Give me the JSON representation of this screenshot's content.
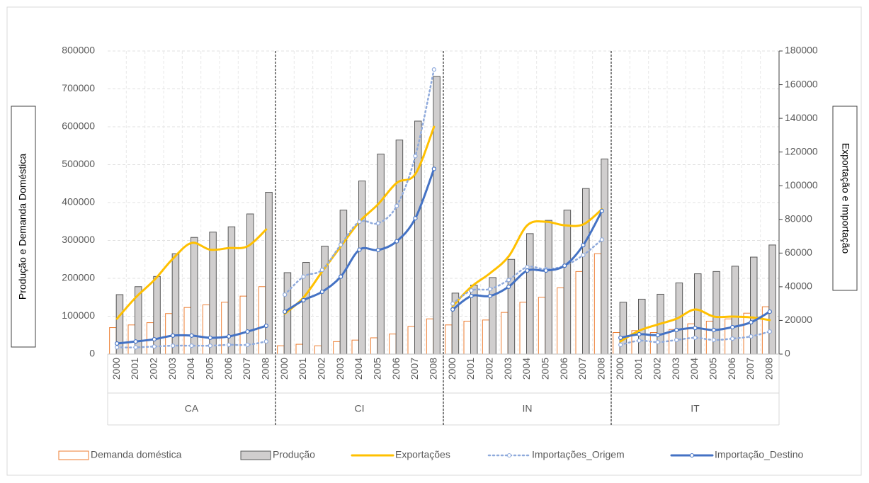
{
  "chart_data": {
    "type": "combo",
    "y_label": "Produção e Demanda Doméstica",
    "y2_label": "Exportação e Importação",
    "groups": [
      "CA",
      "CI",
      "IN",
      "IT"
    ],
    "categories": [
      "2000",
      "2001",
      "2002",
      "2003",
      "2004",
      "2005",
      "2006",
      "2007",
      "2008",
      "2000",
      "2001",
      "2002",
      "2003",
      "2004",
      "2005",
      "2006",
      "2007",
      "2008",
      "2000",
      "2001",
      "2002",
      "2003",
      "2004",
      "2005",
      "2006",
      "2007",
      "2008",
      "2000",
      "2001",
      "2002",
      "2003",
      "2004",
      "2005",
      "2006",
      "2007",
      "2008"
    ],
    "ylim": [
      0,
      800000
    ],
    "yticks": [
      0,
      100000,
      200000,
      300000,
      400000,
      500000,
      600000,
      700000,
      800000
    ],
    "y2lim": [
      0,
      180000
    ],
    "y2ticks": [
      0,
      20000,
      40000,
      60000,
      80000,
      100000,
      120000,
      140000,
      160000,
      180000
    ],
    "grid": true,
    "legend": "bottom",
    "series": [
      {
        "name": "Demanda doméstica",
        "type": "bar",
        "color": "#ed7d31",
        "fill": "#ffffff",
        "values": [
          70000,
          77000,
          83000,
          107000,
          123000,
          130000,
          137000,
          153000,
          178000,
          22000,
          26000,
          22000,
          33000,
          37000,
          43000,
          53000,
          73000,
          93000,
          77000,
          87000,
          90000,
          110000,
          137000,
          150000,
          175000,
          218000,
          265000,
          57000,
          62000,
          57000,
          65000,
          80000,
          87000,
          93000,
          108000,
          125000
        ]
      },
      {
        "name": "Produção",
        "type": "bar",
        "color": "#595959",
        "fill": "#d0cece",
        "values": [
          157000,
          178000,
          205000,
          265000,
          308000,
          322000,
          336000,
          370000,
          427000,
          215000,
          242000,
          285000,
          380000,
          457000,
          528000,
          565000,
          615000,
          733000,
          161000,
          182000,
          202000,
          250000,
          318000,
          353000,
          380000,
          437000,
          515000,
          137000,
          145000,
          158000,
          188000,
          212000,
          218000,
          232000,
          256000,
          288000
        ]
      },
      {
        "name": "Exportações",
        "type": "line",
        "axis": "y2",
        "color": "#ffc000",
        "style": "solid",
        "markers": false,
        "values": [
          21000,
          33600,
          44000,
          56700,
          66000,
          62000,
          63000,
          64000,
          74000,
          24000,
          33600,
          49000,
          64000,
          78600,
          89000,
          101700,
          107000,
          135000,
          28600,
          40000,
          48000,
          58000,
          76500,
          78600,
          76500,
          77000,
          86000,
          7600,
          13900,
          17600,
          21000,
          26500,
          22300,
          22300,
          21800,
          20200
        ]
      },
      {
        "name": "Importações_Origem",
        "type": "line",
        "axis": "y2",
        "color": "#8faadc",
        "style": "dotted",
        "markers": true,
        "values": [
          4000,
          4000,
          4500,
          5000,
          5000,
          5000,
          5500,
          5500,
          7500,
          35300,
          46000,
          50000,
          65000,
          78600,
          77700,
          88000,
          117600,
          169000,
          30000,
          37800,
          38600,
          44000,
          51700,
          50400,
          52500,
          58800,
          68000,
          5500,
          8000,
          7100,
          8400,
          9700,
          8400,
          9200,
          10500,
          13400
        ]
      },
      {
        "name": "Importação_Destino",
        "type": "line",
        "axis": "y2",
        "color": "#4472c4",
        "style": "solid",
        "markers": true,
        "values": [
          6300,
          7500,
          8800,
          11000,
          11000,
          9700,
          10500,
          13400,
          16800,
          25200,
          32000,
          37000,
          46000,
          62000,
          61800,
          67000,
          80700,
          110000,
          26500,
          34500,
          34500,
          40000,
          49600,
          49600,
          52500,
          64700,
          85000,
          9700,
          11800,
          11300,
          14300,
          15500,
          14300,
          16000,
          18900,
          25200
        ]
      }
    ]
  }
}
